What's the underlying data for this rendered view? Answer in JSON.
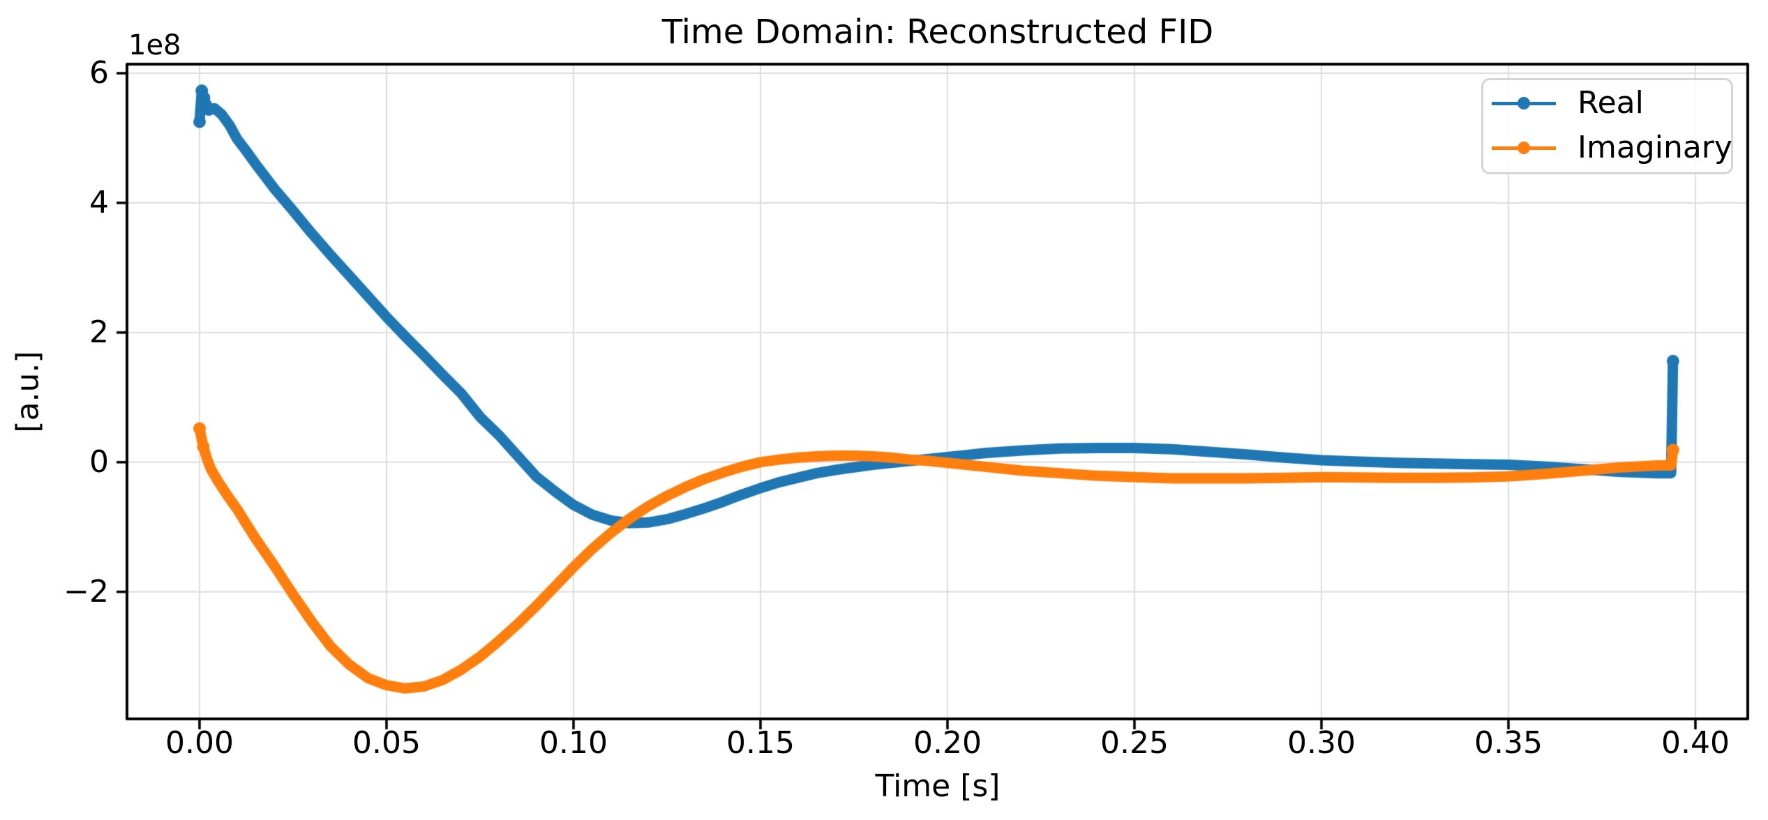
{
  "title": "Time Domain: Reconstructed FID",
  "axes": {
    "xlabel": "Time [s]",
    "ylabel": "[a.u.]",
    "offset_text": "1e8",
    "x_ticks": [
      0.0,
      0.05,
      0.1,
      0.15,
      0.2,
      0.25,
      0.3,
      0.35,
      0.4
    ],
    "x_tick_labels": [
      "0.00",
      "0.05",
      "0.10",
      "0.15",
      "0.20",
      "0.25",
      "0.30",
      "0.35",
      "0.40"
    ],
    "y_ticks": [
      6,
      4,
      2,
      0,
      -2
    ],
    "y_tick_labels": [
      "6",
      "4",
      "2",
      "0",
      "−2"
    ],
    "xlim": [
      -0.0194,
      0.414
    ],
    "ylim": [
      -3.96,
      6.14
    ],
    "grid": true,
    "background": "#ffffff",
    "spine_color": "#000000",
    "grid_color": "#dddddd"
  },
  "legend": {
    "location": "upper right",
    "entries": [
      {
        "label": "Real",
        "color": "#1f77b4"
      },
      {
        "label": "Imaginary",
        "color": "#ff7f0e"
      }
    ]
  },
  "chart_data": {
    "type": "line",
    "title": "Time Domain: Reconstructed FID",
    "xlabel": "Time [s]",
    "ylabel": "[a.u.]",
    "x_unit": "s",
    "y_values_in": "1e8 a.u.",
    "xlim": [
      -0.0194,
      0.414
    ],
    "ylim": [
      -3.96,
      6.14
    ],
    "series": [
      {
        "name": "Real",
        "color": "#1f77b4",
        "points": [
          [
            0.0,
            5.25
          ],
          [
            0.0006,
            5.73
          ],
          [
            0.0012,
            5.62
          ],
          [
            0.0018,
            5.5
          ],
          [
            0.0025,
            5.44
          ],
          [
            0.004,
            5.46
          ],
          [
            0.006,
            5.36
          ],
          [
            0.008,
            5.2
          ],
          [
            0.01,
            4.99
          ],
          [
            0.0125,
            4.8
          ],
          [
            0.015,
            4.6
          ],
          [
            0.0175,
            4.41
          ],
          [
            0.02,
            4.22
          ],
          [
            0.025,
            3.88
          ],
          [
            0.03,
            3.53
          ],
          [
            0.035,
            3.2
          ],
          [
            0.04,
            2.88
          ],
          [
            0.045,
            2.56
          ],
          [
            0.05,
            2.24
          ],
          [
            0.055,
            1.94
          ],
          [
            0.06,
            1.65
          ],
          [
            0.065,
            1.35
          ],
          [
            0.07,
            1.06
          ],
          [
            0.075,
            0.7
          ],
          [
            0.08,
            0.42
          ],
          [
            0.085,
            0.1
          ],
          [
            0.09,
            -0.22
          ],
          [
            0.095,
            -0.45
          ],
          [
            0.1,
            -0.66
          ],
          [
            0.105,
            -0.81
          ],
          [
            0.11,
            -0.9
          ],
          [
            0.115,
            -0.94
          ],
          [
            0.12,
            -0.93
          ],
          [
            0.125,
            -0.88
          ],
          [
            0.13,
            -0.8
          ],
          [
            0.135,
            -0.71
          ],
          [
            0.14,
            -0.61
          ],
          [
            0.145,
            -0.5
          ],
          [
            0.15,
            -0.4
          ],
          [
            0.155,
            -0.31
          ],
          [
            0.16,
            -0.24
          ],
          [
            0.165,
            -0.17
          ],
          [
            0.17,
            -0.12
          ],
          [
            0.175,
            -0.08
          ],
          [
            0.18,
            -0.04
          ],
          [
            0.185,
            -0.01
          ],
          [
            0.19,
            0.02
          ],
          [
            0.195,
            0.05
          ],
          [
            0.2,
            0.08
          ],
          [
            0.205,
            0.11
          ],
          [
            0.21,
            0.14
          ],
          [
            0.22,
            0.18
          ],
          [
            0.23,
            0.21
          ],
          [
            0.24,
            0.22
          ],
          [
            0.25,
            0.22
          ],
          [
            0.26,
            0.2
          ],
          [
            0.27,
            0.16
          ],
          [
            0.28,
            0.12
          ],
          [
            0.29,
            0.07
          ],
          [
            0.3,
            0.03
          ],
          [
            0.31,
            0.01
          ],
          [
            0.32,
            -0.01
          ],
          [
            0.33,
            -0.02
          ],
          [
            0.34,
            -0.03
          ],
          [
            0.35,
            -0.04
          ],
          [
            0.36,
            -0.07
          ],
          [
            0.37,
            -0.11
          ],
          [
            0.38,
            -0.15
          ],
          [
            0.39,
            -0.17
          ],
          [
            0.3935,
            -0.17
          ],
          [
            0.394,
            1.56
          ]
        ],
        "marker_dots": [
          [
            0.0,
            5.25
          ],
          [
            0.0006,
            5.73
          ],
          [
            0.0012,
            5.62
          ],
          [
            0.0018,
            5.5
          ],
          [
            0.0025,
            5.44
          ],
          [
            0.394,
            1.56
          ]
        ]
      },
      {
        "name": "Imaginary",
        "color": "#ff7f0e",
        "points": [
          [
            0.0,
            0.52
          ],
          [
            0.001,
            0.24
          ],
          [
            0.002,
            0.05
          ],
          [
            0.003,
            -0.1
          ],
          [
            0.005,
            -0.3
          ],
          [
            0.0075,
            -0.52
          ],
          [
            0.01,
            -0.72
          ],
          [
            0.0125,
            -0.95
          ],
          [
            0.015,
            -1.18
          ],
          [
            0.0175,
            -1.39
          ],
          [
            0.02,
            -1.6
          ],
          [
            0.025,
            -2.04
          ],
          [
            0.03,
            -2.46
          ],
          [
            0.035,
            -2.84
          ],
          [
            0.04,
            -3.12
          ],
          [
            0.045,
            -3.33
          ],
          [
            0.05,
            -3.44
          ],
          [
            0.055,
            -3.49
          ],
          [
            0.06,
            -3.46
          ],
          [
            0.065,
            -3.36
          ],
          [
            0.07,
            -3.2
          ],
          [
            0.075,
            -3.0
          ],
          [
            0.08,
            -2.76
          ],
          [
            0.085,
            -2.5
          ],
          [
            0.09,
            -2.22
          ],
          [
            0.095,
            -1.92
          ],
          [
            0.1,
            -1.62
          ],
          [
            0.105,
            -1.34
          ],
          [
            0.11,
            -1.09
          ],
          [
            0.115,
            -0.87
          ],
          [
            0.12,
            -0.68
          ],
          [
            0.125,
            -0.52
          ],
          [
            0.13,
            -0.38
          ],
          [
            0.135,
            -0.26
          ],
          [
            0.14,
            -0.16
          ],
          [
            0.145,
            -0.07
          ],
          [
            0.15,
            0.0
          ],
          [
            0.155,
            0.04
          ],
          [
            0.16,
            0.07
          ],
          [
            0.165,
            0.09
          ],
          [
            0.17,
            0.1
          ],
          [
            0.175,
            0.1
          ],
          [
            0.18,
            0.09
          ],
          [
            0.185,
            0.07
          ],
          [
            0.19,
            0.04
          ],
          [
            0.195,
            0.02
          ],
          [
            0.2,
            -0.01
          ],
          [
            0.205,
            -0.04
          ],
          [
            0.21,
            -0.07
          ],
          [
            0.22,
            -0.13
          ],
          [
            0.23,
            -0.17
          ],
          [
            0.24,
            -0.21
          ],
          [
            0.25,
            -0.23
          ],
          [
            0.26,
            -0.25
          ],
          [
            0.27,
            -0.25
          ],
          [
            0.28,
            -0.25
          ],
          [
            0.29,
            -0.24
          ],
          [
            0.3,
            -0.23
          ],
          [
            0.31,
            -0.235
          ],
          [
            0.32,
            -0.24
          ],
          [
            0.33,
            -0.24
          ],
          [
            0.34,
            -0.235
          ],
          [
            0.35,
            -0.22
          ],
          [
            0.36,
            -0.18
          ],
          [
            0.37,
            -0.13
          ],
          [
            0.38,
            -0.08
          ],
          [
            0.39,
            -0.05
          ],
          [
            0.3935,
            -0.05
          ],
          [
            0.394,
            0.19
          ]
        ],
        "marker_dots": [
          [
            0.0,
            0.52
          ],
          [
            0.001,
            0.24
          ],
          [
            0.394,
            0.19
          ]
        ]
      }
    ]
  }
}
